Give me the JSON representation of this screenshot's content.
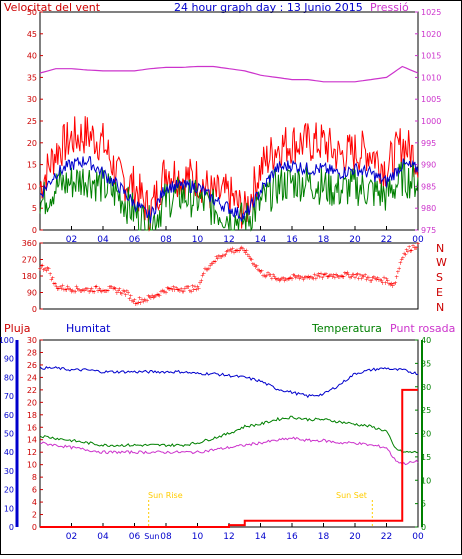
{
  "header": {
    "left_label": "Velocitat del vent",
    "title": "24 hour graph day : 13 Junio 2015",
    "right_label": "Pressió"
  },
  "colors": {
    "red": "#ff0000",
    "darkred": "#cc0000",
    "blue": "#0000cc",
    "green": "#008000",
    "magenta": "#cc33cc",
    "frame": "#000000",
    "sun": "#ffcc00"
  },
  "chart_data": [
    {
      "type": "line",
      "name": "wind-pressure",
      "x_ticks": [
        "02",
        "04",
        "06",
        "08",
        "10",
        "12",
        "14",
        "16",
        "18",
        "20",
        "22",
        "00"
      ],
      "ylim_left": [
        0,
        50
      ],
      "yticks_left": [
        0,
        5,
        10,
        15,
        20,
        25,
        30,
        35,
        40,
        45,
        50
      ],
      "ylim_right": [
        975,
        1025
      ],
      "yticks_right": [
        975,
        980,
        985,
        990,
        995,
        1000,
        1005,
        1010,
        1015,
        1020,
        1025
      ],
      "hours": [
        0,
        1,
        2,
        3,
        4,
        5,
        6,
        7,
        8,
        9,
        10,
        11,
        12,
        13,
        14,
        15,
        16,
        17,
        18,
        19,
        20,
        21,
        22,
        23,
        24
      ],
      "gust": [
        10,
        18,
        21,
        22,
        20,
        12,
        10,
        4,
        14,
        12,
        12,
        8,
        8,
        4,
        14,
        19,
        20,
        20,
        20,
        17,
        18,
        18,
        14,
        20,
        16
      ],
      "avg": [
        8,
        13,
        15,
        16,
        13,
        10,
        6,
        3,
        10,
        10,
        10,
        7,
        5,
        3,
        9,
        14,
        15,
        14,
        14,
        13,
        14,
        13,
        11,
        15,
        14
      ],
      "min": [
        6,
        10,
        11,
        12,
        10,
        8,
        4,
        1,
        7,
        8,
        7,
        5,
        3,
        2,
        6,
        10,
        11,
        11,
        10,
        9,
        10,
        9,
        8,
        12,
        11
      ],
      "pressure": [
        1011.0,
        1012.0,
        1012.0,
        1011.7,
        1011.5,
        1011.5,
        1011.5,
        1012.0,
        1012.3,
        1012.3,
        1012.5,
        1012.5,
        1012.0,
        1011.5,
        1010.5,
        1010.0,
        1009.5,
        1009.5,
        1009.0,
        1009.0,
        1009.0,
        1009.5,
        1010.0,
        1012.5,
        1011.0
      ]
    },
    {
      "type": "scatter",
      "name": "wind-direction",
      "ylim": [
        0,
        360
      ],
      "yticks": [
        0,
        90,
        180,
        270,
        360
      ],
      "compass_labels": [
        "N",
        "W",
        "S",
        "E",
        "N"
      ],
      "hours": [
        0,
        0.5,
        1,
        2,
        3,
        4,
        5,
        5.5,
        6,
        7,
        8,
        9,
        10,
        10.5,
        11,
        12,
        13,
        14,
        15,
        16,
        17,
        18,
        19,
        20,
        21,
        22,
        22.5,
        23,
        23.5,
        24
      ],
      "dir": [
        230,
        220,
        120,
        110,
        105,
        110,
        100,
        85,
        40,
        60,
        105,
        110,
        110,
        215,
        260,
        320,
        320,
        200,
        165,
        170,
        175,
        180,
        185,
        185,
        165,
        155,
        130,
        290,
        330,
        350
      ]
    },
    {
      "type": "line",
      "name": "humidity-temp",
      "left_label": "Pluja",
      "humidity_label": "Humitat",
      "temp_label": "Temperatura",
      "dew_label": "Punt rosada",
      "rain_ylim": [
        0,
        30
      ],
      "rain_yticks": [
        0,
        2,
        4,
        6,
        8,
        10,
        12,
        14,
        16,
        18,
        20,
        22,
        24,
        26,
        28,
        30
      ],
      "hum_ylim": [
        0,
        100
      ],
      "hum_yticks": [
        0,
        10,
        20,
        30,
        40,
        50,
        60,
        70,
        80,
        90,
        100
      ],
      "temp_ylim": [
        0,
        40
      ],
      "temp_yticks": [
        0,
        5,
        10,
        15,
        20,
        25,
        30,
        35,
        40
      ],
      "hours": [
        0,
        1,
        2,
        3,
        4,
        5,
        6,
        7,
        8,
        9,
        10,
        11,
        12,
        13,
        14,
        15,
        16,
        17,
        18,
        19,
        20,
        21,
        22,
        22.5,
        23,
        24
      ],
      "humidity": [
        85,
        85,
        84,
        84,
        83,
        83,
        83,
        83,
        83,
        83,
        82,
        82,
        81,
        80,
        78,
        74,
        72,
        70,
        71,
        76,
        82,
        84,
        85,
        84,
        84,
        82
      ],
      "temperature": [
        19.5,
        19.0,
        18.5,
        18.0,
        17.5,
        17.5,
        17.5,
        17.5,
        17.5,
        17.5,
        18.0,
        19.0,
        20.0,
        21.5,
        22.0,
        23.0,
        23.5,
        23.0,
        23.0,
        22.5,
        22.0,
        21.5,
        20.5,
        17.0,
        16.0,
        16.0
      ],
      "dewpoint": [
        18.0,
        17.5,
        17.0,
        16.5,
        16.0,
        16.0,
        16.0,
        16.0,
        16.0,
        16.0,
        16.0,
        16.5,
        17.0,
        17.5,
        18.0,
        18.5,
        19.0,
        18.5,
        18.5,
        18.0,
        18.0,
        17.5,
        17.0,
        14.5,
        13.5,
        14.0
      ],
      "rain": [
        0,
        0,
        0,
        0,
        0,
        0,
        0,
        0,
        0,
        0,
        0,
        0,
        0.3,
        1,
        1,
        1,
        1,
        1,
        1,
        1,
        1,
        1,
        1,
        1,
        22,
        22
      ],
      "sun_rise": {
        "label": "Sun Rise",
        "hour": 6.9
      },
      "sun_set": {
        "label": "Sun Set",
        "hour": 21.1
      },
      "x_ticks": [
        "02",
        "04",
        "06",
        "08",
        "10",
        "12",
        "14",
        "16",
        "18",
        "20",
        "22",
        "00"
      ],
      "extra_tick": "Sun"
    }
  ]
}
